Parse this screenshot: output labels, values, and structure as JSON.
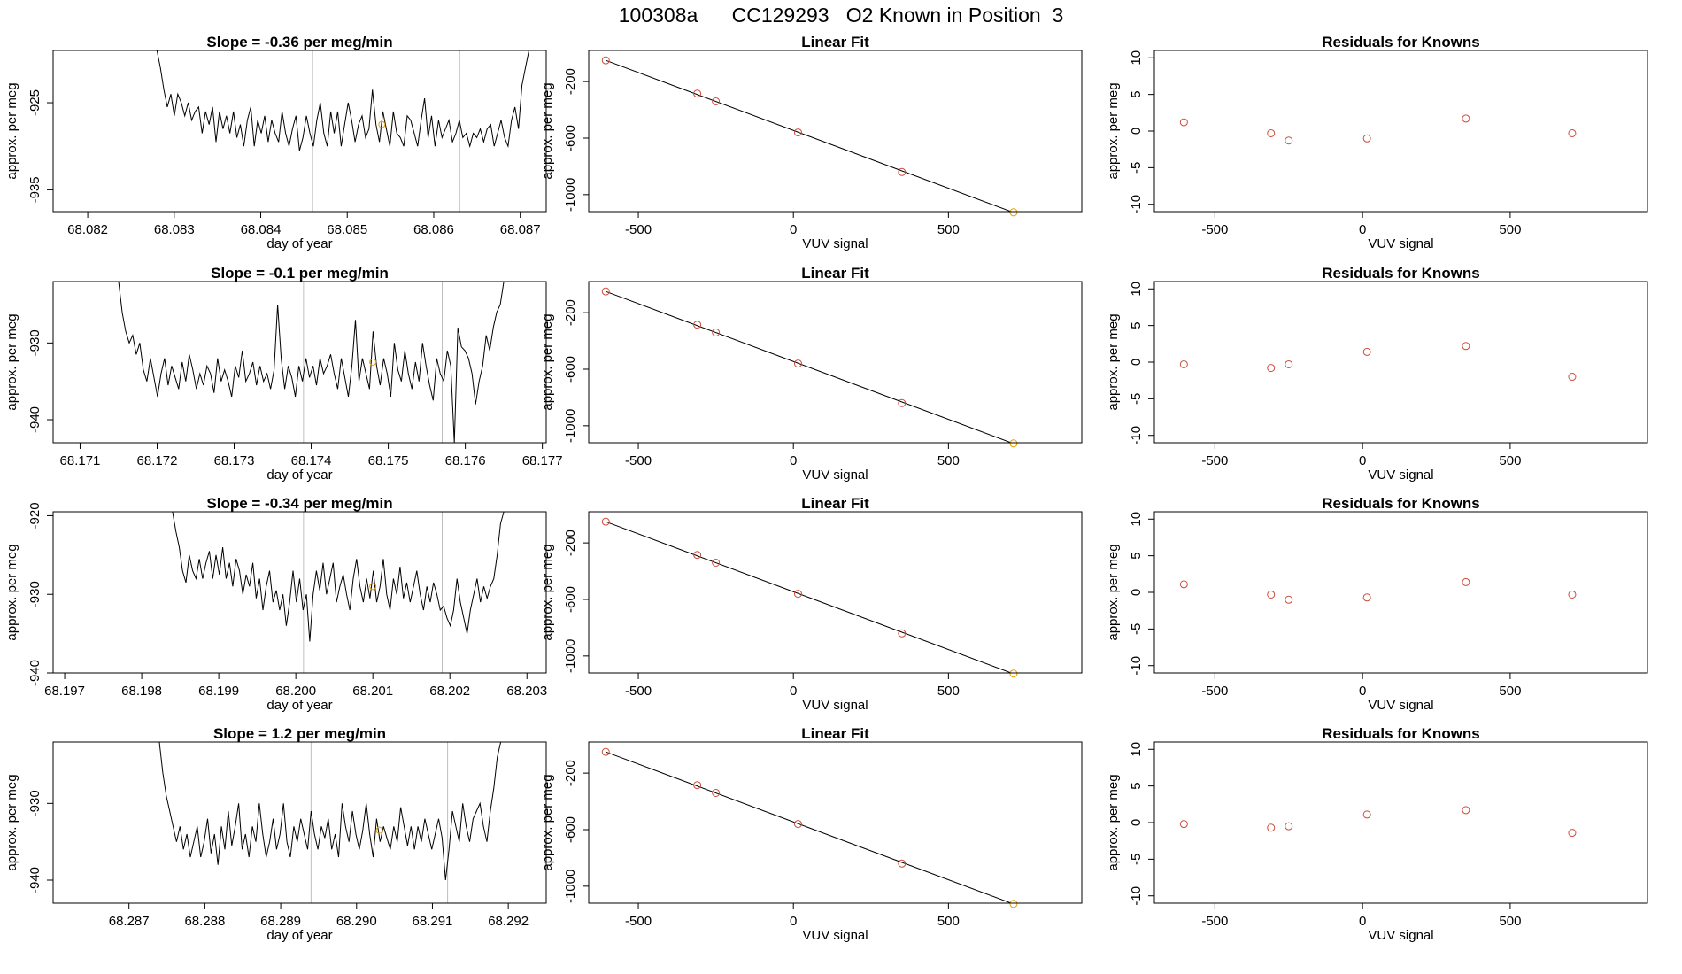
{
  "title": "100308a      CC129293   O2 Known in Position  3",
  "colors": {
    "series": "#000000",
    "known_point": "#cd4c3a",
    "highlight_point": "#e69f00",
    "vline": "#bebebe",
    "frame": "#000000"
  },
  "chart_data": [
    {
      "row": 1,
      "type": "line",
      "title": "Slope =  -0.36  per meg/min",
      "xlabel": "day of year",
      "ylabel": "approx. per meg",
      "xlim": [
        68.0816,
        68.0873
      ],
      "ylim": [
        -937.5,
        -919
      ],
      "xticks": [
        "68.082",
        "68.083",
        "68.084",
        "68.085",
        "68.086",
        "68.087"
      ],
      "yticks": [
        "-925",
        "-935"
      ],
      "vlines": [
        68.0846,
        68.0863
      ],
      "marker": {
        "x": 68.0854,
        "y": -927.5
      },
      "series": [
        {
          "x_start": 68.0828,
          "x_end": 68.0871,
          "values": [
            -919,
            -921,
            -923.5,
            -925.5,
            -924,
            -926.5,
            -924,
            -925,
            -926.5,
            -925,
            -927,
            -926,
            -925.5,
            -928.5,
            -926,
            -927.5,
            -925.5,
            -929.5,
            -926,
            -928,
            -926.5,
            -928.5,
            -926,
            -929,
            -927.5,
            -930,
            -927,
            -925.5,
            -930,
            -927,
            -928.5,
            -926.5,
            -929.5,
            -927,
            -928.5,
            -929.5,
            -926,
            -928.5,
            -930,
            -928,
            -926.5,
            -930.5,
            -929,
            -926.5,
            -928.5,
            -930,
            -927,
            -925,
            -928.5,
            -930,
            -926,
            -928.5,
            -926,
            -930,
            -927.5,
            -925,
            -927,
            -929.5,
            -927.5,
            -926.5,
            -929,
            -928,
            -923.5,
            -927.5,
            -929.5,
            -926,
            -928,
            -930,
            -926,
            -928.5,
            -929,
            -930,
            -926.5,
            -927,
            -928.5,
            -930,
            -927,
            -924.5,
            -929,
            -926.5,
            -930,
            -927,
            -929,
            -928,
            -927,
            -929.5,
            -928.5,
            -927,
            -929,
            -928.5,
            -930,
            -928.5,
            -929,
            -928,
            -929.5,
            -928,
            -927.5,
            -930,
            -928.5,
            -927,
            -929,
            -930,
            -927,
            -925.5,
            -928,
            -923,
            -921,
            -919
          ]
        }
      ],
      "fit": {
        "title": "Linear Fit",
        "xlabel": "VUV signal",
        "ylabel": "approx. per meg",
        "xlim": [
          -660,
          930
        ],
        "ylim": [
          -1120,
          20
        ],
        "xticks": [
          -500,
          0,
          500
        ],
        "yticks": [
          -200,
          -600,
          -1000
        ],
        "points_x": [
          -605,
          -310,
          -250,
          15,
          350,
          710
        ],
        "points_y": [
          -50,
          -285,
          -340,
          -560,
          -840,
          -1125
        ],
        "line": [
          [
            -605,
            -50
          ],
          [
            910,
            -1290
          ]
        ]
      },
      "resid": {
        "title": "Residuals for Knowns",
        "xlabel": "VUV signal",
        "ylabel": "approx. per meg",
        "xlim": [
          -705,
          965
        ],
        "ylim": [
          -11,
          11
        ],
        "xticks": [
          -500,
          0,
          500
        ],
        "yticks": [
          10,
          5,
          0,
          -5,
          -10
        ],
        "points_x": [
          -605,
          -310,
          -250,
          15,
          350,
          710
        ],
        "points_y": [
          1.2,
          -0.3,
          -1.3,
          -1,
          1.7,
          -0.3
        ]
      }
    },
    {
      "row": 2,
      "type": "line",
      "title": "Slope =  -0.1  per meg/min",
      "xlabel": "day of year",
      "ylabel": "approx. per meg",
      "xlim": [
        68.17065,
        68.17705
      ],
      "ylim": [
        -943,
        -922
      ],
      "xticks": [
        "68.171",
        "68.172",
        "68.173",
        "68.174",
        "68.175",
        "68.176",
        "68.177"
      ],
      "yticks": [
        "-930",
        "-940"
      ],
      "vlines": [
        68.1739,
        68.1757
      ],
      "marker": {
        "x": 68.1748,
        "y": -932.5
      },
      "series": [
        {
          "x_start": 68.1715,
          "x_end": 68.1765,
          "values": [
            -922,
            -926,
            -928.5,
            -930,
            -929,
            -931.5,
            -930,
            -933.5,
            -935,
            -932,
            -934.5,
            -937,
            -934,
            -932,
            -935.5,
            -933,
            -934.5,
            -936,
            -932.5,
            -935,
            -931.5,
            -933.5,
            -936,
            -934,
            -935.5,
            -933,
            -934,
            -936.5,
            -932,
            -935,
            -933.5,
            -935,
            -937,
            -933,
            -934.5,
            -931,
            -935,
            -934,
            -932.5,
            -935.5,
            -933,
            -935,
            -934,
            -936,
            -933.5,
            -925,
            -932,
            -936,
            -933,
            -934.5,
            -937,
            -933,
            -935,
            -932,
            -934.5,
            -933,
            -935.5,
            -932,
            -934,
            -933,
            -931.5,
            -934,
            -936,
            -932,
            -934.5,
            -937,
            -933,
            -927,
            -935,
            -932,
            -934,
            -936,
            -928.5,
            -933,
            -935.5,
            -932,
            -934,
            -937,
            -930,
            -933.5,
            -935,
            -931,
            -934,
            -936,
            -932.5,
            -935,
            -930,
            -933,
            -935.5,
            -937.5,
            -932,
            -934,
            -935,
            -931,
            -933,
            -943,
            -928,
            -930.5,
            -931,
            -932,
            -934,
            -938,
            -935,
            -933,
            -929,
            -931,
            -928,
            -926,
            -925,
            -922
          ]
        }
      ],
      "fit": {
        "title": "Linear Fit",
        "xlabel": "VUV signal",
        "ylabel": "approx. per meg",
        "xlim": [
          -660,
          930
        ],
        "ylim": [
          -1120,
          20
        ],
        "xticks": [
          -500,
          0,
          500
        ],
        "yticks": [
          -200,
          -600,
          -1000
        ],
        "points_x": [
          -605,
          -310,
          -250,
          15,
          350,
          710
        ],
        "points_y": [
          -50,
          -285,
          -340,
          -560,
          -840,
          -1125
        ],
        "line": [
          [
            -605,
            -50
          ],
          [
            910,
            -1290
          ]
        ]
      },
      "resid": {
        "title": "Residuals for Knowns",
        "xlabel": "VUV signal",
        "ylabel": "approx. per meg",
        "xlim": [
          -705,
          965
        ],
        "ylim": [
          -11,
          11
        ],
        "xticks": [
          -500,
          0,
          500
        ],
        "yticks": [
          10,
          5,
          0,
          -5,
          -10
        ],
        "points_x": [
          -605,
          -310,
          -250,
          15,
          350,
          710
        ],
        "points_y": [
          -0.3,
          -0.8,
          -0.3,
          1.4,
          2.2,
          -2
        ]
      }
    },
    {
      "row": 3,
      "type": "line",
      "title": "Slope =  -0.34  per meg/min",
      "xlabel": "day of year",
      "ylabel": "approx. per meg",
      "xlim": [
        68.19685,
        68.20325
      ],
      "ylim": [
        -940,
        -919.5
      ],
      "xticks": [
        "68.197",
        "68.198",
        "68.199",
        "68.200",
        "68.201",
        "68.202",
        "68.203"
      ],
      "yticks": [
        "-920",
        "-930",
        "-940"
      ],
      "vlines": [
        68.2001,
        68.2019
      ],
      "marker": {
        "x": 68.201,
        "y": -929
      },
      "series": [
        {
          "x_start": 68.1984,
          "x_end": 68.2027,
          "values": [
            -919.5,
            -922,
            -924,
            -927,
            -928.5,
            -925,
            -927,
            -928,
            -925.5,
            -928,
            -926,
            -924.5,
            -928,
            -925,
            -927.5,
            -924,
            -928,
            -926,
            -929,
            -925.5,
            -927,
            -930,
            -927.5,
            -929,
            -926,
            -930.5,
            -928,
            -932,
            -929,
            -927,
            -931,
            -929.5,
            -932,
            -930,
            -934,
            -931,
            -927,
            -931,
            -928,
            -932,
            -930,
            -936,
            -930,
            -927,
            -929.5,
            -926,
            -930,
            -928,
            -926,
            -931,
            -929,
            -927.5,
            -930,
            -932,
            -928,
            -925.5,
            -929,
            -931,
            -928,
            -930.5,
            -927,
            -931,
            -929,
            -925.5,
            -930,
            -932,
            -928,
            -930,
            -926.5,
            -930.5,
            -928.5,
            -931,
            -929,
            -927,
            -930,
            -932,
            -929,
            -931,
            -928.5,
            -930,
            -932,
            -931.5,
            -933,
            -934,
            -932,
            -928,
            -931,
            -933,
            -935,
            -932,
            -930,
            -928,
            -931,
            -929,
            -930.5,
            -929,
            -928,
            -925,
            -921,
            -919.5
          ]
        }
      ],
      "fit": {
        "title": "Linear Fit",
        "xlabel": "VUV signal",
        "ylabel": "approx. per meg",
        "xlim": [
          -660,
          930
        ],
        "ylim": [
          -1120,
          20
        ],
        "xticks": [
          -500,
          0,
          500
        ],
        "yticks": [
          -200,
          -600,
          -1000
        ],
        "points_x": [
          -605,
          -310,
          -250,
          15,
          350,
          710
        ],
        "points_y": [
          -50,
          -285,
          -340,
          -560,
          -840,
          -1125
        ],
        "line": [
          [
            -605,
            -50
          ],
          [
            910,
            -1290
          ]
        ]
      },
      "resid": {
        "title": "Residuals for Knowns",
        "xlabel": "VUV signal",
        "ylabel": "approx. per meg",
        "xlim": [
          -705,
          965
        ],
        "ylim": [
          -11,
          11
        ],
        "xticks": [
          -500,
          0,
          500
        ],
        "yticks": [
          10,
          5,
          0,
          -5,
          -10
        ],
        "points_x": [
          -605,
          -310,
          -250,
          15,
          350,
          710
        ],
        "points_y": [
          1.1,
          -0.3,
          -1,
          -0.7,
          1.4,
          -0.3
        ]
      }
    },
    {
      "row": 4,
      "type": "line",
      "title": "Slope =  1.2  per meg/min",
      "xlabel": "day of year",
      "ylabel": "approx. per meg",
      "xlim": [
        68.286,
        68.2925
      ],
      "ylim": [
        -943,
        -922
      ],
      "xticks": [
        "68.287",
        "68.288",
        "68.289",
        "68.290",
        "68.291",
        "68.292"
      ],
      "yticks": [
        "-930",
        "-940"
      ],
      "vlines": [
        68.2894,
        68.2912
      ],
      "marker": {
        "x": 68.2903,
        "y": -933.5
      },
      "series": [
        {
          "x_start": 68.2874,
          "x_end": 68.2919,
          "values": [
            -922,
            -926,
            -929,
            -931,
            -933,
            -935,
            -933,
            -936,
            -934,
            -937,
            -935,
            -933,
            -937,
            -935,
            -932,
            -936.5,
            -934,
            -938,
            -933,
            -936,
            -931,
            -935.5,
            -933,
            -930,
            -936,
            -934,
            -937,
            -933,
            -935,
            -930,
            -934,
            -937,
            -935,
            -932,
            -936,
            -934,
            -930,
            -935,
            -937,
            -933,
            -935,
            -932,
            -934,
            -936,
            -931,
            -934,
            -936,
            -933,
            -934.5,
            -932,
            -936,
            -934,
            -937,
            -930,
            -933,
            -935,
            -931,
            -934,
            -936,
            -933.5,
            -930,
            -934,
            -937,
            -932,
            -935,
            -933,
            -934.5,
            -936,
            -933,
            -935,
            -930.5,
            -933,
            -935.5,
            -933,
            -936,
            -933,
            -935,
            -932,
            -934,
            -936,
            -934,
            -932,
            -934.5,
            -940,
            -936,
            -931,
            -933,
            -935,
            -930,
            -933,
            -935,
            -932,
            -931,
            -930,
            -933,
            -935,
            -931,
            -928,
            -924,
            -922
          ]
        }
      ],
      "fit": {
        "title": "Linear Fit",
        "xlabel": "VUV signal",
        "ylabel": "approx. per meg",
        "xlim": [
          -660,
          930
        ],
        "ylim": [
          -1120,
          20
        ],
        "xticks": [
          -500,
          0,
          500
        ],
        "yticks": [
          -200,
          -600,
          -1000
        ],
        "points_x": [
          -605,
          -310,
          -250,
          15,
          350,
          710
        ],
        "points_y": [
          -50,
          -285,
          -340,
          -560,
          -840,
          -1125
        ],
        "line": [
          [
            -605,
            -50
          ],
          [
            910,
            -1290
          ]
        ]
      },
      "resid": {
        "title": "Residuals for Knowns",
        "xlabel": "VUV signal",
        "ylabel": "approx. per meg",
        "xlim": [
          -705,
          965
        ],
        "ylim": [
          -11,
          11
        ],
        "xticks": [
          -500,
          0,
          500
        ],
        "yticks": [
          10,
          5,
          0,
          -5,
          -10
        ],
        "points_x": [
          -605,
          -310,
          -250,
          15,
          350,
          710
        ],
        "points_y": [
          -0.2,
          -0.7,
          -0.5,
          1.1,
          1.7,
          -1.4
        ]
      }
    }
  ]
}
